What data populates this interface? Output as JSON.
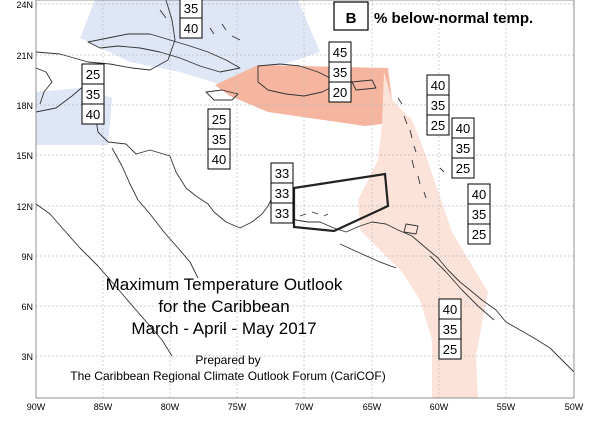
{
  "title": {
    "line1": "Maximum Temperature Outlook",
    "line2": "for the Caribbean",
    "line3": "March - April - May 2017"
  },
  "credit": {
    "line1": "Prepared by",
    "line2": "The Caribbean Regional Climate Outlook Forum (CariCOF)"
  },
  "legend": {
    "box_letter": "B",
    "text": "% below-normal temp."
  },
  "axes": {
    "lat_labels": [
      "24N",
      "21N",
      "18N",
      "15N",
      "12N",
      "9N",
      "6N",
      "3N"
    ],
    "lon_labels": [
      "90W",
      "85W",
      "80W",
      "75W",
      "70W",
      "65W",
      "60W",
      "55W",
      "50W"
    ]
  },
  "colors": {
    "below_normal_fill": "#dfe6f6",
    "above_normal_strong": "#f6b59e",
    "above_normal_light": "#fbe3d9",
    "grid": "#bdbdbd",
    "land": "#333333",
    "normal_outline": "#222222"
  },
  "probability_stacks": [
    {
      "id": "bahamas",
      "values": [
        "35",
        "40"
      ]
    },
    {
      "id": "western-caribbean",
      "values": [
        "25",
        "35",
        "40"
      ]
    },
    {
      "id": "central-caribbean",
      "values": [
        "25",
        "35",
        "40"
      ]
    },
    {
      "id": "greater-antilles",
      "values": [
        "45",
        "35",
        "20"
      ]
    },
    {
      "id": "leewards",
      "values": [
        "40",
        "35",
        "25"
      ]
    },
    {
      "id": "windwards",
      "values": [
        "40",
        "35",
        "25"
      ]
    },
    {
      "id": "barbados",
      "values": [
        "40",
        "35",
        "25"
      ]
    },
    {
      "id": "abc-islands",
      "values": [
        "33",
        "33",
        "33"
      ]
    },
    {
      "id": "guianas",
      "values": [
        "40",
        "35",
        "25"
      ]
    }
  ]
}
